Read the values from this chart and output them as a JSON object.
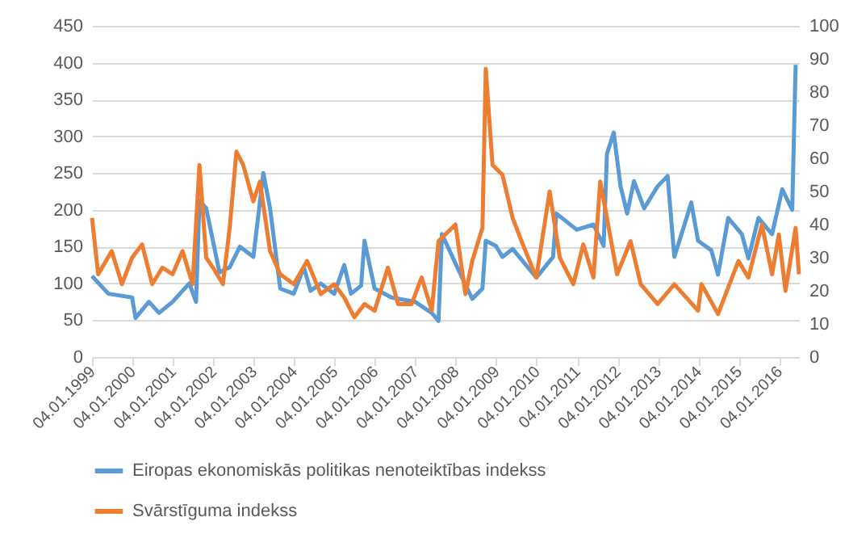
{
  "chart_data": {
    "type": "line",
    "xlim": [
      "1999-01-04",
      "2016-07-01"
    ],
    "xticks": [
      {
        "value": "1999-01-04",
        "label": "04.01.1999"
      },
      {
        "value": "2000-01-04",
        "label": "04.01.2000"
      },
      {
        "value": "2001-01-04",
        "label": "04.01.2001"
      },
      {
        "value": "2002-01-04",
        "label": "04.01.2002"
      },
      {
        "value": "2003-01-04",
        "label": "04.01.2003"
      },
      {
        "value": "2004-01-04",
        "label": "04.01.2004"
      },
      {
        "value": "2005-01-04",
        "label": "04.01.2005"
      },
      {
        "value": "2006-01-04",
        "label": "04.01.2006"
      },
      {
        "value": "2007-01-04",
        "label": "04.01.2007"
      },
      {
        "value": "2008-01-04",
        "label": "04.01.2008"
      },
      {
        "value": "2009-01-04",
        "label": "04.01.2009"
      },
      {
        "value": "2010-01-04",
        "label": "04.01.2010"
      },
      {
        "value": "2011-01-04",
        "label": "04.01.2011"
      },
      {
        "value": "2012-01-04",
        "label": "04.01.2012"
      },
      {
        "value": "2013-01-04",
        "label": "04.01.2013"
      },
      {
        "value": "2014-01-04",
        "label": "04.01.2014"
      },
      {
        "value": "2015-01-04",
        "label": "04.01.2015"
      },
      {
        "value": "2016-01-04",
        "label": "04.01.2016"
      }
    ],
    "ylim": [
      0,
      450
    ],
    "yticks": [
      0,
      50,
      100,
      150,
      200,
      250,
      300,
      350,
      400,
      450
    ],
    "y2lim": [
      0,
      100
    ],
    "y2ticks": [
      0,
      10,
      20,
      30,
      40,
      50,
      60,
      70,
      80,
      90,
      100
    ],
    "grid": "y",
    "legend": "bottom",
    "line_style": "solid",
    "series": [
      {
        "name": "Eiropas ekonomiskās politikas nenoteiktības indekss",
        "color": "#5b9bd5",
        "x": [
          "1999-01-04",
          "1999-06",
          "2000-01",
          "2000-02",
          "2000-06",
          "2000-09",
          "2001-01",
          "2001-06",
          "2001-08",
          "2001-09",
          "2001-11",
          "2002-03",
          "2002-06",
          "2002-09",
          "2003-01",
          "2003-04",
          "2003-06",
          "2003-09",
          "2004-01",
          "2004-04",
          "2004-06",
          "2004-09",
          "2005-01",
          "2005-04",
          "2005-06",
          "2005-09",
          "2005-10",
          "2006-01",
          "2006-06",
          "2007-01",
          "2007-06",
          "2007-08",
          "2007-09",
          "2008-03",
          "2008-06",
          "2008-09",
          "2008-10",
          "2009-01",
          "2009-03",
          "2009-06",
          "2010-01",
          "2010-06",
          "2010-07",
          "2011-01",
          "2011-06",
          "2011-09",
          "2011-10",
          "2011-12",
          "2012-02",
          "2012-04",
          "2012-06",
          "2012-09",
          "2013-01",
          "2013-04",
          "2013-06",
          "2013-09",
          "2013-11",
          "2014-01",
          "2014-05",
          "2014-07",
          "2014-10",
          "2015-02",
          "2015-04",
          "2015-07",
          "2015-11",
          "2016-02",
          "2016-05",
          "2016-06"
        ],
        "values": [
          110,
          86,
          81,
          53,
          75,
          60,
          75,
          100,
          75,
          213,
          202,
          115,
          122,
          150,
          136,
          250,
          202,
          93,
          86,
          122,
          90,
          100,
          86,
          125,
          86,
          97,
          158,
          93,
          81,
          75,
          60,
          49,
          167,
          108,
          79,
          93,
          158,
          151,
          136,
          147,
          108,
          136,
          195,
          173,
          180,
          151,
          276,
          305,
          232,
          195,
          239,
          202,
          232,
          246,
          136,
          180,
          210,
          158,
          145,
          112,
          189,
          167,
          134,
          189,
          167,
          228,
          200,
          397
        ]
      },
      {
        "name": "Svārstīguma indekss",
        "color": "#ed7d31",
        "axis": "y2",
        "x": [
          "1999-01-04",
          "1999-03",
          "1999-07",
          "1999-10",
          "2000-01",
          "2000-04",
          "2000-07",
          "2000-10",
          "2001-01",
          "2001-04",
          "2001-07",
          "2001-09",
          "2001-11",
          "2002-01",
          "2002-04",
          "2002-06",
          "2002-08",
          "2002-10",
          "2003-01",
          "2003-03",
          "2003-06",
          "2003-09",
          "2004-01",
          "2004-05",
          "2004-09",
          "2005-01",
          "2005-04",
          "2005-07",
          "2005-10",
          "2006-01",
          "2006-05",
          "2006-08",
          "2006-12",
          "2007-03",
          "2007-06",
          "2007-08",
          "2008-01",
          "2008-04",
          "2008-06",
          "2008-09",
          "2008-10",
          "2008-12",
          "2009-03",
          "2009-06",
          "2009-09",
          "2010-01",
          "2010-05",
          "2010-08",
          "2010-12",
          "2011-03",
          "2011-06",
          "2011-08",
          "2011-10",
          "2012-01",
          "2012-05",
          "2012-08",
          "2013-01",
          "2013-06",
          "2014-01",
          "2014-02",
          "2014-07",
          "2015-01",
          "2015-04",
          "2015-08",
          "2015-11",
          "2016-01",
          "2016-03",
          "2016-06",
          "2016-07"
        ],
        "values": [
          42,
          25,
          32,
          22,
          30,
          34,
          22,
          27,
          25,
          32,
          22,
          58,
          30,
          27,
          22,
          39,
          62,
          58,
          47,
          53,
          32,
          25,
          22,
          29,
          19,
          22,
          18,
          12,
          16,
          14,
          27,
          16,
          16,
          24,
          14,
          35,
          40,
          19,
          29,
          39,
          87,
          58,
          55,
          42,
          34,
          24,
          50,
          30,
          22,
          34,
          24,
          53,
          42,
          25,
          35,
          22,
          16,
          22,
          14,
          22,
          13,
          29,
          24,
          40,
          25,
          37,
          20,
          39,
          25
        ]
      }
    ]
  }
}
